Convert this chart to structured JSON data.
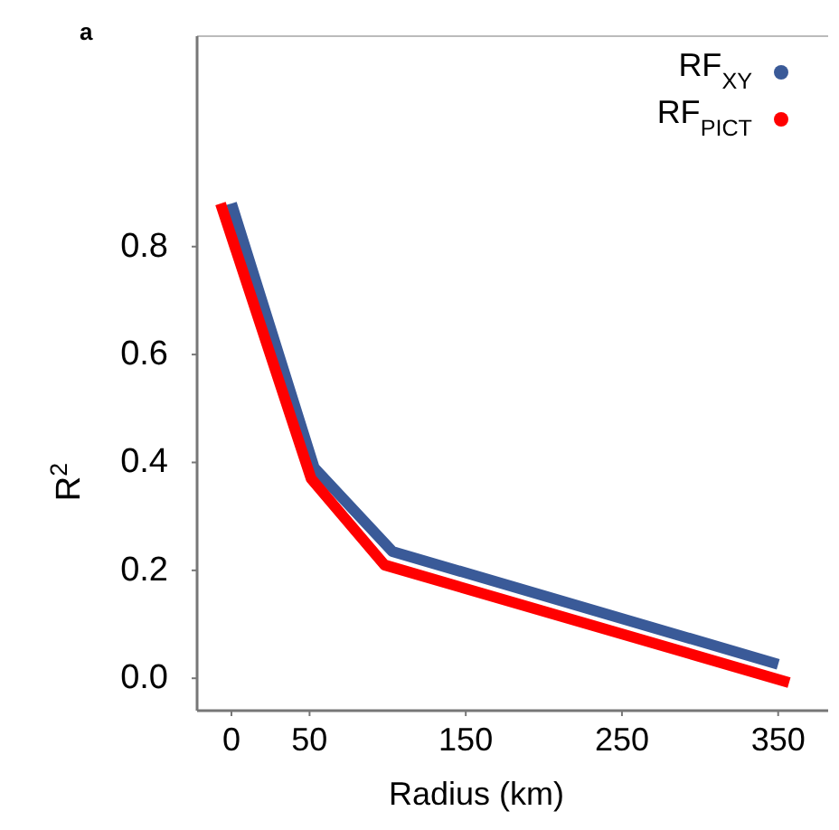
{
  "chart_data": {
    "type": "line",
    "xlabel": "Radius (km)",
    "ylabel": "R$^{2}$",
    "annotations": [
      "a"
    ],
    "xlim": [
      -22,
      382
    ],
    "xticks": [
      0,
      50,
      150,
      250,
      350
    ],
    "ylim": [
      -0.06,
      1.19
    ],
    "yticks": [
      {
        "value": 0,
        "label": "0.0"
      },
      0.2,
      0.4,
      0.6,
      0.8
    ],
    "grid": false,
    "legend": "top right",
    "marker": "none",
    "line_style": "solid",
    "series": [
      {
        "name": "RF$_{XY}$",
        "color": "#3a5a98",
        "x": [
          0,
          53,
          103,
          350
        ],
        "values": [
          0.88,
          0.39,
          0.235,
          0.026
        ]
      },
      {
        "name": "RF$_{PICT}$",
        "color": "#ff0000",
        "x": [
          -7,
          51,
          98,
          357
        ],
        "values": [
          0.88,
          0.37,
          0.21,
          -0.008
        ]
      }
    ]
  }
}
